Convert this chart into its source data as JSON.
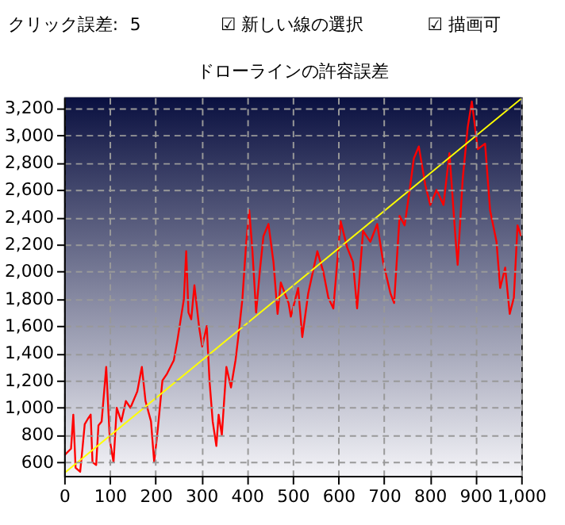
{
  "chart_data": {
    "type": "line",
    "title": "ドローラインの許容誤差",
    "annotations": [
      "クリック誤差:",
      "5",
      "☑ 新しい線の選択",
      "☑ 描画可"
    ],
    "xlim": [
      0,
      1000
    ],
    "ylim": [
      500,
      3280
    ],
    "xticks": [
      0,
      100,
      200,
      300,
      400,
      500,
      600,
      700,
      800,
      900,
      {
        "value": 1000,
        "label": "1,000"
      }
    ],
    "yticks": [
      600,
      800,
      {
        "value": 1000,
        "label": "1,000"
      },
      {
        "value": 1200,
        "label": "1,200"
      },
      {
        "value": 1400,
        "label": "1,400"
      },
      {
        "value": 1600,
        "label": "1,600"
      },
      {
        "value": 1800,
        "label": "1,800"
      },
      {
        "value": 2000,
        "label": "2,000"
      },
      {
        "value": 2200,
        "label": "2,200"
      },
      {
        "value": 2400,
        "label": "2,400"
      },
      {
        "value": 2600,
        "label": "2,600"
      },
      {
        "value": 2800,
        "label": "2,800"
      },
      {
        "value": 3000,
        "label": "3,000"
      },
      {
        "value": 3200,
        "label": "3,200"
      }
    ],
    "grid": true,
    "line_style": "solid",
    "marker": "none",
    "series": [
      {
        "color": "#ff0000",
        "x": [
          0,
          15,
          20,
          25,
          35,
          40,
          45,
          52,
          58,
          62,
          70,
          75,
          82,
          92,
          100,
          108,
          115,
          125,
          135,
          145,
          160,
          170,
          178,
          190,
          197,
          205,
          215,
          225,
          240,
          248,
          255,
          262,
          267,
          272,
          278,
          285,
          295,
          302,
          312,
          318,
          325,
          333,
          338,
          345,
          355,
          365,
          375,
          382,
          390,
          398,
          405,
          412,
          420,
          428,
          436,
          447,
          458,
          467,
          474,
          491,
          496,
          512,
          521,
          534,
          554,
          567,
          578,
          589,
          605,
          619,
          632,
          641,
          654,
          670,
          685,
          698,
          714,
          722,
          734,
          745,
          756,
          765,
          776,
          790,
          801,
          815,
          830,
          843,
          856,
          861,
          872,
          883,
          892,
          905,
          921,
          932,
          946,
          954,
          965,
          975,
          984,
          992,
          1000
        ],
        "values": [
          650,
          700,
          950,
          560,
          530,
          700,
          880,
          920,
          950,
          600,
          580,
          870,
          900,
          1300,
          760,
          600,
          1000,
          900,
          1050,
          1000,
          1120,
          1300,
          1050,
          900,
          600,
          850,
          1200,
          1250,
          1350,
          1500,
          1650,
          1800,
          2150,
          1700,
          1650,
          1900,
          1600,
          1450,
          1600,
          1200,
          900,
          720,
          950,
          800,
          1300,
          1150,
          1350,
          1550,
          1800,
          2200,
          2450,
          2150,
          1700,
          2000,
          2260,
          2350,
          2070,
          1690,
          1920,
          1770,
          1670,
          1880,
          1520,
          1840,
          2150,
          2000,
          1810,
          1730,
          2370,
          2180,
          2070,
          1730,
          2300,
          2220,
          2350,
          2070,
          1840,
          1770,
          2410,
          2340,
          2600,
          2830,
          2920,
          2640,
          2490,
          2600,
          2490,
          2870,
          2260,
          2050,
          2680,
          3060,
          3250,
          2900,
          2940,
          2450,
          2220,
          1880,
          2030,
          1690,
          1810,
          2340,
          2260
        ]
      },
      {
        "color": "#ffff00",
        "x": [
          0,
          1000
        ],
        "values": [
          520,
          3270
        ]
      }
    ]
  }
}
